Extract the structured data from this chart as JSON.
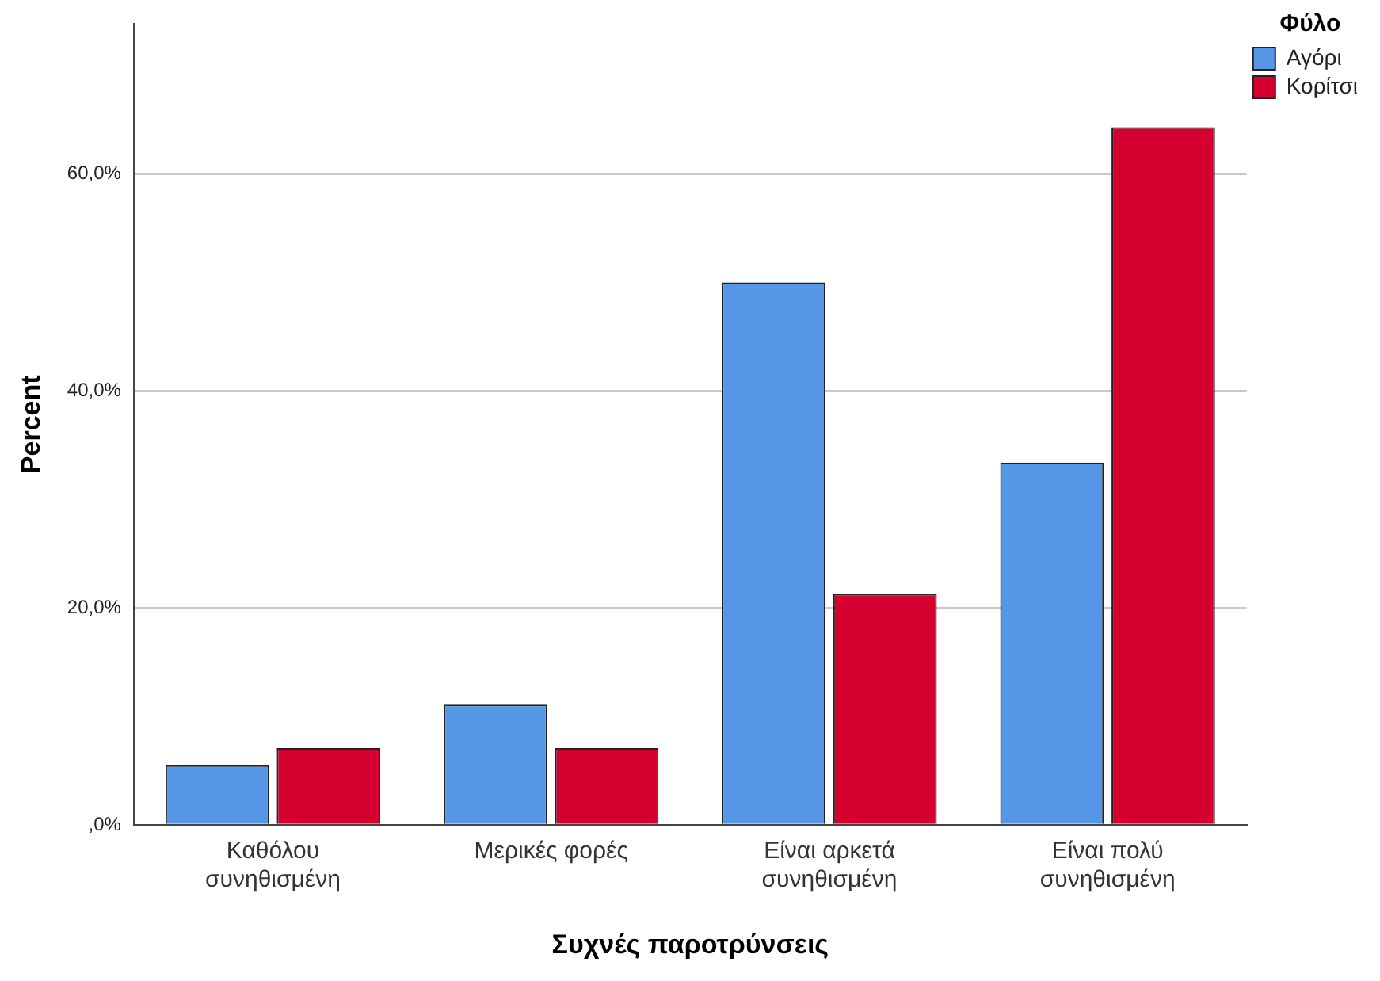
{
  "chart_data": {
    "type": "bar",
    "xlabel": "Συχνές παροτρύνσεις",
    "ylabel": "Percent",
    "legend_title": "Φύλο",
    "legend": "top right",
    "categories": [
      "Καθόλου συνηθισμένη",
      "Μερικές φορές",
      "Είναι αρκετά συνηθισμένη",
      "Είναι πολύ συνηθισμένη"
    ],
    "series": [
      {
        "name": "Αγόρι",
        "color": "#5596e6",
        "values": [
          5.5,
          11.1,
          50.0,
          33.4
        ]
      },
      {
        "name": "Κορίτσι",
        "color": "#d60030",
        "values": [
          7.1,
          7.1,
          21.3,
          64.3
        ]
      }
    ],
    "ylim": [
      0,
      73.8
    ],
    "yticks": [
      {
        "value": 0,
        "label": ",0%"
      },
      {
        "value": 20,
        "label": "20,0%"
      },
      {
        "value": 40,
        "label": "40,0%"
      },
      {
        "value": 60,
        "label": "60,0%"
      }
    ],
    "grid": "y"
  }
}
